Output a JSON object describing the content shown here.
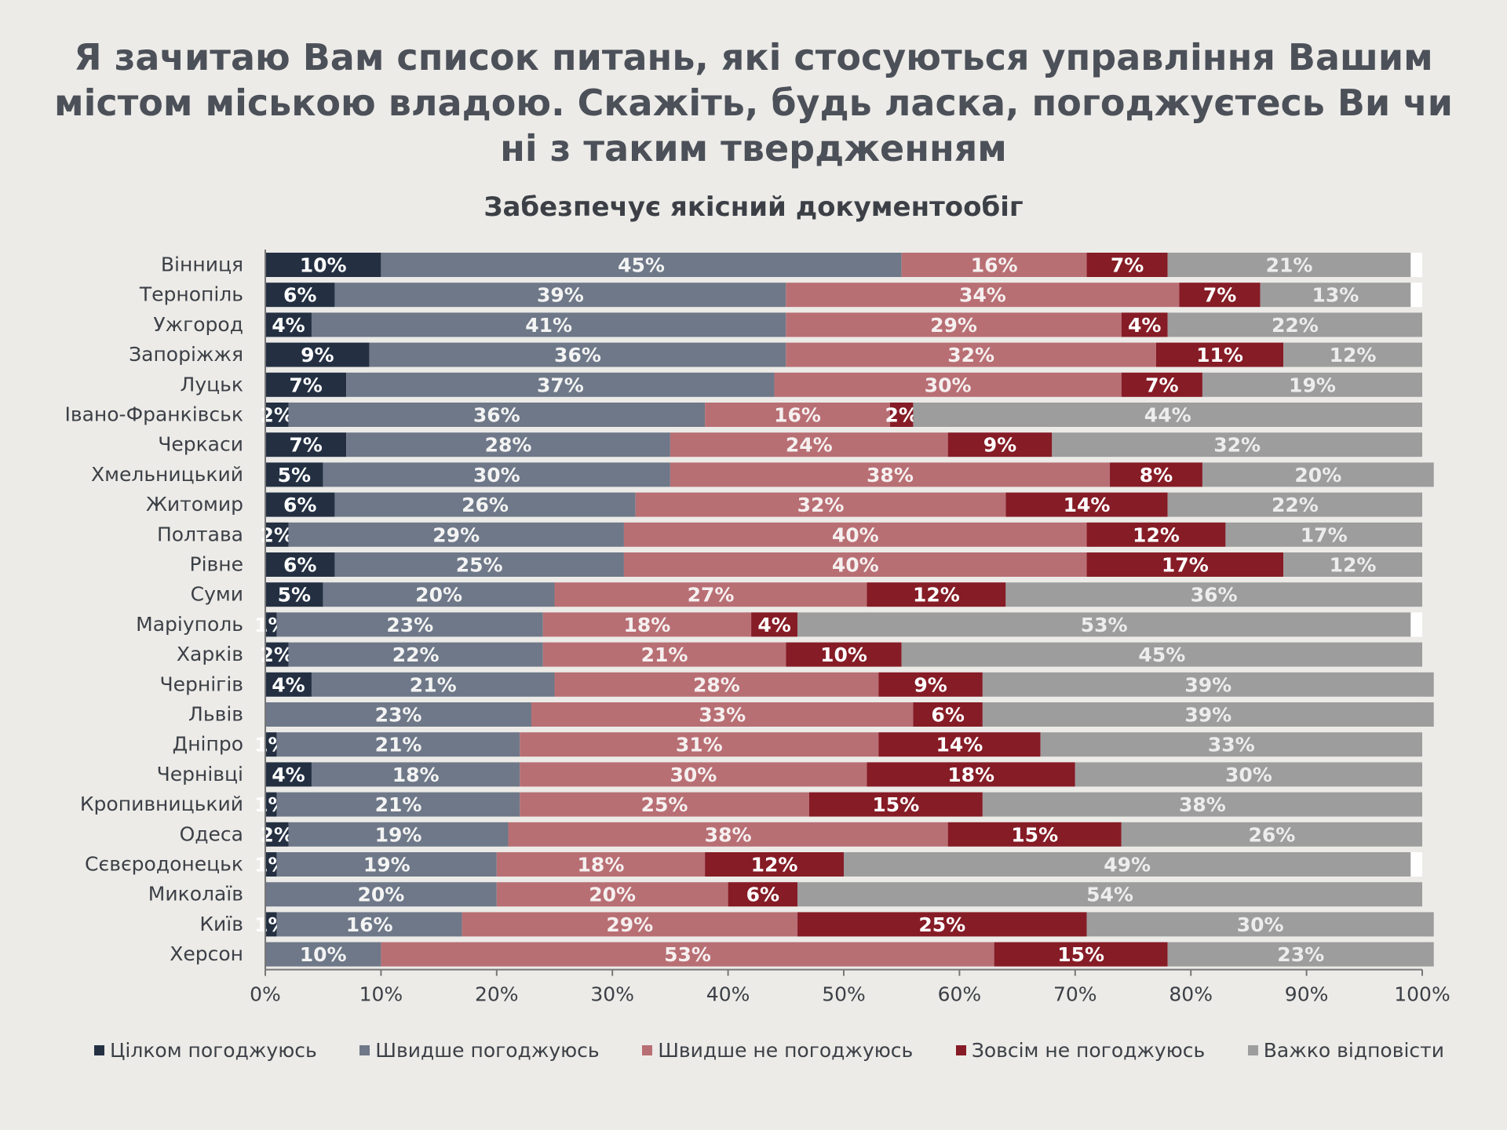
{
  "page": {
    "title_lines": [
      "Я зачитаю Вам список питань, які стосуються управління Вашим",
      "містом міською владою. Скажіть, будь ласка, погоджуєтесь Ви чи",
      "ні з таким твердженням"
    ],
    "subtitle": "Забезпечує якісний документообіг"
  },
  "chart_data": {
    "type": "bar",
    "orientation": "horizontal",
    "stacked": true,
    "percent_stacked": true,
    "title": "Забезпечує якісний документообіг",
    "xlabel": "",
    "ylabel": "",
    "xlim": [
      0,
      100
    ],
    "x_ticks": [
      "0%",
      "10%",
      "20%",
      "30%",
      "40%",
      "50%",
      "60%",
      "70%",
      "80%",
      "90%",
      "100%"
    ],
    "grid": false,
    "legend_position": "bottom",
    "categories": [
      "Вінниця",
      "Тернопіль",
      "Ужгород",
      "Запоріжжя",
      "Луцьк",
      "Івано-Франківськ",
      "Черкаси",
      "Хмельницький",
      "Житомир",
      "Полтава",
      "Рівне",
      "Суми",
      "Маріуполь",
      "Харків",
      "Чернігів",
      "Львів",
      "Дніпро",
      "Чернівці",
      "Кропивницький",
      "Одеса",
      "Сєвєродонецьк",
      "Миколаїв",
      "Київ",
      "Херсон"
    ],
    "series": [
      {
        "name": "Цілком погоджуюсь",
        "color": "#243042",
        "label_color": "#ffffff",
        "values": [
          10,
          6,
          4,
          9,
          7,
          2,
          7,
          5,
          6,
          2,
          6,
          5,
          1,
          2,
          4,
          0,
          1,
          4,
          1,
          2,
          1,
          0,
          1,
          0
        ]
      },
      {
        "name": "Швидше погоджуюсь",
        "color": "#6e7888",
        "label_color": "#f4f4f4",
        "values": [
          45,
          39,
          41,
          36,
          37,
          36,
          28,
          30,
          26,
          29,
          25,
          20,
          23,
          22,
          21,
          23,
          21,
          18,
          21,
          19,
          19,
          20,
          16,
          10
        ]
      },
      {
        "name": "Швидше не погоджуюсь",
        "color": "#b86f74",
        "label_color": "#f6f0f0",
        "values": [
          16,
          34,
          29,
          32,
          30,
          16,
          24,
          38,
          32,
          40,
          40,
          27,
          18,
          21,
          28,
          33,
          31,
          30,
          25,
          38,
          18,
          20,
          29,
          53
        ]
      },
      {
        "name": "Зовсім не погоджуюсь",
        "color": "#861c26",
        "label_color": "#ffffff",
        "values": [
          7,
          7,
          4,
          11,
          7,
          2,
          9,
          8,
          14,
          12,
          17,
          12,
          4,
          10,
          9,
          6,
          14,
          18,
          15,
          15,
          12,
          6,
          25,
          15
        ]
      },
      {
        "name": "Важко відповісти",
        "color": "#9d9d9d",
        "label_color": "#ededed",
        "values": [
          21,
          13,
          22,
          12,
          19,
          44,
          32,
          20,
          22,
          17,
          12,
          36,
          53,
          45,
          39,
          39,
          33,
          30,
          38,
          26,
          49,
          54,
          30,
          23
        ]
      }
    ]
  }
}
